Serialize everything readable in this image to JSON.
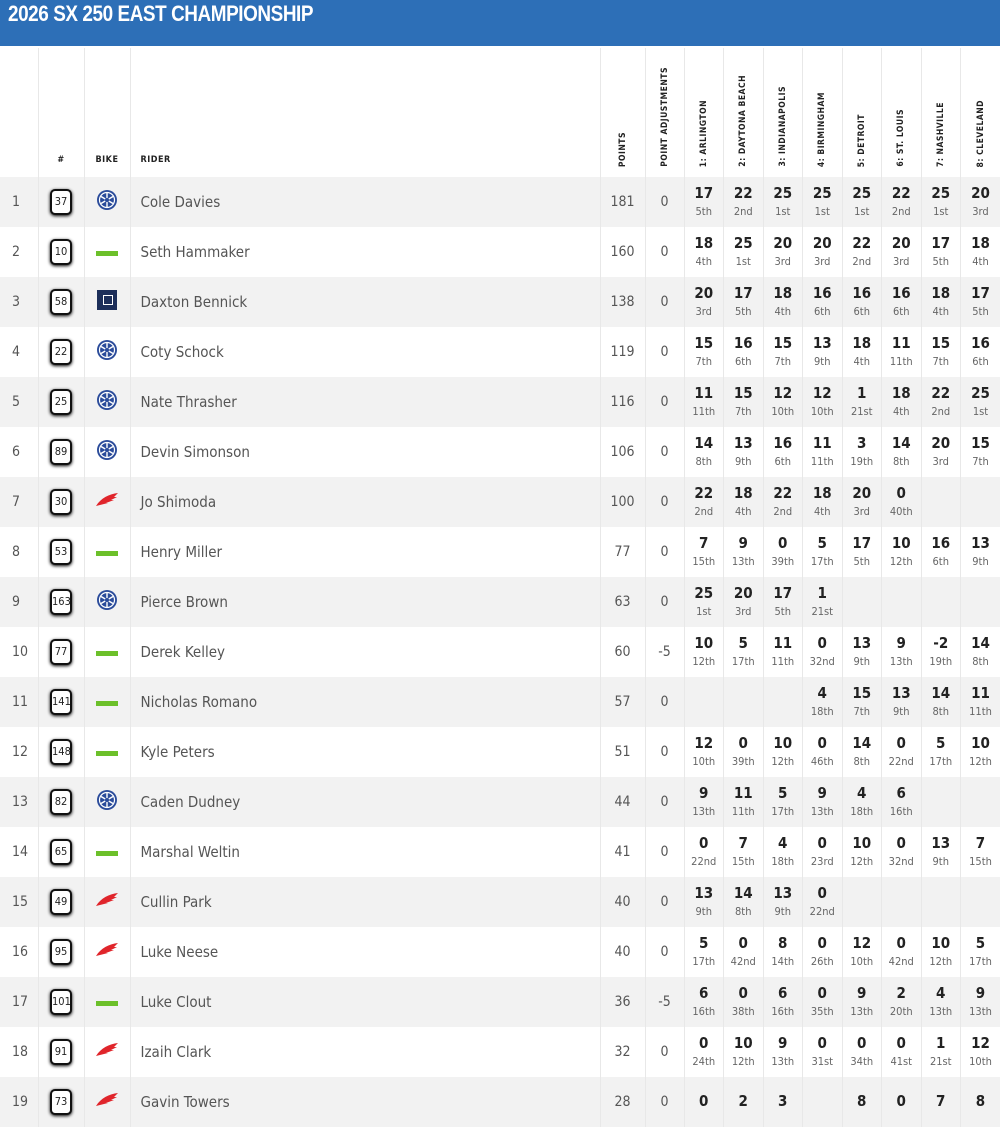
{
  "title": "2026 SX 250 EAST CHAMPIONSHIP",
  "headers": {
    "pos": "",
    "number": "#",
    "bike": "BIKE",
    "rider": "RIDER",
    "points": "POINTS",
    "adj": "POINT ADJUSTMENTS",
    "races": [
      "1: ARLINGTON",
      "2: DAYTONA BEACH",
      "3: INDIANAPOLIS",
      "4: BIRMINGHAM",
      "5: DETROIT",
      "6: ST. LOUIS",
      "7: NASHVILLE",
      "8: CLEVELAND"
    ]
  },
  "colors": {
    "header": "#2d6fb7",
    "yamaha": "#2b4c9b",
    "kawasaki": "#6cc02a",
    "husqvarna": "#1d2f5a",
    "honda": "#e0252b"
  },
  "rows": [
    {
      "pos": "1",
      "num": "37",
      "bike": "yamaha",
      "rider": "Cole Davies",
      "points": "181",
      "adj": "0",
      "races": [
        [
          "17",
          "5th"
        ],
        [
          "22",
          "2nd"
        ],
        [
          "25",
          "1st"
        ],
        [
          "25",
          "1st"
        ],
        [
          "25",
          "1st"
        ],
        [
          "22",
          "2nd"
        ],
        [
          "25",
          "1st"
        ],
        [
          "20",
          "3rd"
        ]
      ]
    },
    {
      "pos": "2",
      "num": "10",
      "bike": "kawasaki",
      "rider": "Seth Hammaker",
      "points": "160",
      "adj": "0",
      "races": [
        [
          "18",
          "4th"
        ],
        [
          "25",
          "1st"
        ],
        [
          "20",
          "3rd"
        ],
        [
          "20",
          "3rd"
        ],
        [
          "22",
          "2nd"
        ],
        [
          "20",
          "3rd"
        ],
        [
          "17",
          "5th"
        ],
        [
          "18",
          "4th"
        ]
      ]
    },
    {
      "pos": "3",
      "num": "58",
      "bike": "husqvarna",
      "rider": "Daxton Bennick",
      "points": "138",
      "adj": "0",
      "races": [
        [
          "20",
          "3rd"
        ],
        [
          "17",
          "5th"
        ],
        [
          "18",
          "4th"
        ],
        [
          "16",
          "6th"
        ],
        [
          "16",
          "6th"
        ],
        [
          "16",
          "6th"
        ],
        [
          "18",
          "4th"
        ],
        [
          "17",
          "5th"
        ]
      ]
    },
    {
      "pos": "4",
      "num": "22",
      "bike": "yamaha",
      "rider": "Coty Schock",
      "points": "119",
      "adj": "0",
      "races": [
        [
          "15",
          "7th"
        ],
        [
          "16",
          "6th"
        ],
        [
          "15",
          "7th"
        ],
        [
          "13",
          "9th"
        ],
        [
          "18",
          "4th"
        ],
        [
          "11",
          "11th"
        ],
        [
          "15",
          "7th"
        ],
        [
          "16",
          "6th"
        ]
      ]
    },
    {
      "pos": "5",
      "num": "25",
      "bike": "yamaha",
      "rider": "Nate Thrasher",
      "points": "116",
      "adj": "0",
      "races": [
        [
          "11",
          "11th"
        ],
        [
          "15",
          "7th"
        ],
        [
          "12",
          "10th"
        ],
        [
          "12",
          "10th"
        ],
        [
          "1",
          "21st"
        ],
        [
          "18",
          "4th"
        ],
        [
          "22",
          "2nd"
        ],
        [
          "25",
          "1st"
        ]
      ]
    },
    {
      "pos": "6",
      "num": "89",
      "bike": "yamaha",
      "rider": "Devin Simonson",
      "points": "106",
      "adj": "0",
      "races": [
        [
          "14",
          "8th"
        ],
        [
          "13",
          "9th"
        ],
        [
          "16",
          "6th"
        ],
        [
          "11",
          "11th"
        ],
        [
          "3",
          "19th"
        ],
        [
          "14",
          "8th"
        ],
        [
          "20",
          "3rd"
        ],
        [
          "15",
          "7th"
        ]
      ]
    },
    {
      "pos": "7",
      "num": "30",
      "bike": "honda",
      "rider": "Jo Shimoda",
      "points": "100",
      "adj": "0",
      "races": [
        [
          "22",
          "2nd"
        ],
        [
          "18",
          "4th"
        ],
        [
          "22",
          "2nd"
        ],
        [
          "18",
          "4th"
        ],
        [
          "20",
          "3rd"
        ],
        [
          "0",
          "40th"
        ],
        [
          "",
          ""
        ],
        [
          "",
          ""
        ]
      ]
    },
    {
      "pos": "8",
      "num": "53",
      "bike": "kawasaki",
      "rider": "Henry Miller",
      "points": "77",
      "adj": "0",
      "races": [
        [
          "7",
          "15th"
        ],
        [
          "9",
          "13th"
        ],
        [
          "0",
          "39th"
        ],
        [
          "5",
          "17th"
        ],
        [
          "17",
          "5th"
        ],
        [
          "10",
          "12th"
        ],
        [
          "16",
          "6th"
        ],
        [
          "13",
          "9th"
        ]
      ]
    },
    {
      "pos": "9",
      "num": "163",
      "bike": "yamaha",
      "rider": "Pierce Brown",
      "points": "63",
      "adj": "0",
      "races": [
        [
          "25",
          "1st"
        ],
        [
          "20",
          "3rd"
        ],
        [
          "17",
          "5th"
        ],
        [
          "1",
          "21st"
        ],
        [
          "",
          ""
        ],
        [
          "",
          ""
        ],
        [
          "",
          ""
        ],
        [
          "",
          ""
        ]
      ]
    },
    {
      "pos": "10",
      "num": "77",
      "bike": "kawasaki",
      "rider": "Derek Kelley",
      "points": "60",
      "adj": "-5",
      "races": [
        [
          "10",
          "12th"
        ],
        [
          "5",
          "17th"
        ],
        [
          "11",
          "11th"
        ],
        [
          "0",
          "32nd"
        ],
        [
          "13",
          "9th"
        ],
        [
          "9",
          "13th"
        ],
        [
          "-2",
          "19th"
        ],
        [
          "14",
          "8th"
        ]
      ]
    },
    {
      "pos": "11",
      "num": "141",
      "bike": "kawasaki",
      "rider": "Nicholas Romano",
      "points": "57",
      "adj": "0",
      "races": [
        [
          "",
          ""
        ],
        [
          "",
          ""
        ],
        [
          "",
          ""
        ],
        [
          "4",
          "18th"
        ],
        [
          "15",
          "7th"
        ],
        [
          "13",
          "9th"
        ],
        [
          "14",
          "8th"
        ],
        [
          "11",
          "11th"
        ]
      ]
    },
    {
      "pos": "12",
      "num": "148",
      "bike": "kawasaki",
      "rider": "Kyle Peters",
      "points": "51",
      "adj": "0",
      "races": [
        [
          "12",
          "10th"
        ],
        [
          "0",
          "39th"
        ],
        [
          "10",
          "12th"
        ],
        [
          "0",
          "46th"
        ],
        [
          "14",
          "8th"
        ],
        [
          "0",
          "22nd"
        ],
        [
          "5",
          "17th"
        ],
        [
          "10",
          "12th"
        ]
      ]
    },
    {
      "pos": "13",
      "num": "82",
      "bike": "yamaha",
      "rider": "Caden Dudney",
      "points": "44",
      "adj": "0",
      "races": [
        [
          "9",
          "13th"
        ],
        [
          "11",
          "11th"
        ],
        [
          "5",
          "17th"
        ],
        [
          "9",
          "13th"
        ],
        [
          "4",
          "18th"
        ],
        [
          "6",
          "16th"
        ],
        [
          "",
          ""
        ],
        [
          "",
          ""
        ]
      ]
    },
    {
      "pos": "14",
      "num": "65",
      "bike": "kawasaki",
      "rider": "Marshal Weltin",
      "points": "41",
      "adj": "0",
      "races": [
        [
          "0",
          "22nd"
        ],
        [
          "7",
          "15th"
        ],
        [
          "4",
          "18th"
        ],
        [
          "0",
          "23rd"
        ],
        [
          "10",
          "12th"
        ],
        [
          "0",
          "32nd"
        ],
        [
          "13",
          "9th"
        ],
        [
          "7",
          "15th"
        ]
      ]
    },
    {
      "pos": "15",
      "num": "49",
      "bike": "honda",
      "rider": "Cullin Park",
      "points": "40",
      "adj": "0",
      "races": [
        [
          "13",
          "9th"
        ],
        [
          "14",
          "8th"
        ],
        [
          "13",
          "9th"
        ],
        [
          "0",
          "22nd"
        ],
        [
          "",
          ""
        ],
        [
          "",
          ""
        ],
        [
          "",
          ""
        ],
        [
          "",
          ""
        ]
      ]
    },
    {
      "pos": "16",
      "num": "95",
      "bike": "honda",
      "rider": "Luke Neese",
      "points": "40",
      "adj": "0",
      "races": [
        [
          "5",
          "17th"
        ],
        [
          "0",
          "42nd"
        ],
        [
          "8",
          "14th"
        ],
        [
          "0",
          "26th"
        ],
        [
          "12",
          "10th"
        ],
        [
          "0",
          "42nd"
        ],
        [
          "10",
          "12th"
        ],
        [
          "5",
          "17th"
        ]
      ]
    },
    {
      "pos": "17",
      "num": "101",
      "bike": "kawasaki",
      "rider": "Luke Clout",
      "points": "36",
      "adj": "-5",
      "races": [
        [
          "6",
          "16th"
        ],
        [
          "0",
          "38th"
        ],
        [
          "6",
          "16th"
        ],
        [
          "0",
          "35th"
        ],
        [
          "9",
          "13th"
        ],
        [
          "2",
          "20th"
        ],
        [
          "4",
          "13th"
        ],
        [
          "9",
          "13th"
        ]
      ]
    },
    {
      "pos": "18",
      "num": "91",
      "bike": "honda",
      "rider": "Izaih Clark",
      "points": "32",
      "adj": "0",
      "races": [
        [
          "0",
          "24th"
        ],
        [
          "10",
          "12th"
        ],
        [
          "9",
          "13th"
        ],
        [
          "0",
          "31st"
        ],
        [
          "0",
          "34th"
        ],
        [
          "0",
          "41st"
        ],
        [
          "1",
          "21st"
        ],
        [
          "12",
          "10th"
        ]
      ]
    },
    {
      "pos": "19",
      "num": "73",
      "bike": "honda",
      "rider": "Gavin Towers",
      "points": "28",
      "adj": "0",
      "races": [
        [
          "0",
          ""
        ],
        [
          "2",
          ""
        ],
        [
          "3",
          ""
        ],
        [
          "",
          ""
        ],
        [
          "8",
          ""
        ],
        [
          "0",
          ""
        ],
        [
          "7",
          ""
        ],
        [
          "8",
          ""
        ]
      ]
    }
  ]
}
